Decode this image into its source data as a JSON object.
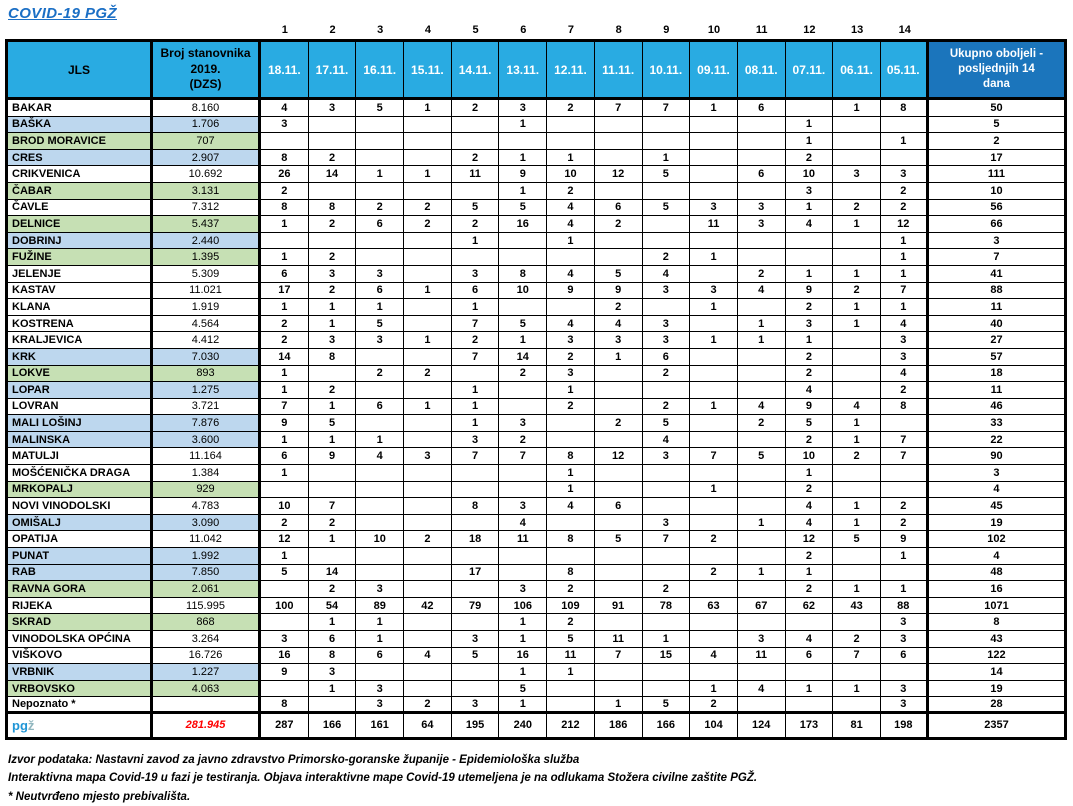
{
  "title": "COVID-19  PGŽ",
  "table": {
    "day_numbers": [
      "1",
      "2",
      "3",
      "4",
      "5",
      "6",
      "7",
      "8",
      "9",
      "10",
      "11",
      "12",
      "13",
      "14"
    ],
    "headers": {
      "jls": "JLS",
      "population": "Broj stanovnika\n2019.\n(DZS)",
      "dates": [
        "18.11.",
        "17.11.",
        "16.11.",
        "15.11.",
        "14.11.",
        "13.11.",
        "12.11.",
        "11.11.",
        "10.11.",
        "09.11.",
        "08.11.",
        "07.11.",
        "06.11.",
        "05.11."
      ],
      "total": "Ukupno oboljeli -\nposljednjih 14\ndana"
    },
    "rows": [
      {
        "name": "BAKAR",
        "population": "8.160",
        "color": "white",
        "values": [
          "4",
          "3",
          "5",
          "1",
          "2",
          "3",
          "2",
          "7",
          "7",
          "1",
          "6",
          "",
          "1",
          "8"
        ],
        "total": "50"
      },
      {
        "name": "BAŠKA",
        "population": "1.706",
        "color": "blue",
        "values": [
          "3",
          "",
          "",
          "",
          "",
          "1",
          "",
          "",
          "",
          "",
          "",
          "1",
          "",
          ""
        ],
        "total": "5"
      },
      {
        "name": "BROD MORAVICE",
        "population": "707",
        "color": "green",
        "values": [
          "",
          "",
          "",
          "",
          "",
          "",
          "",
          "",
          "",
          "",
          "",
          "1",
          "",
          "1"
        ],
        "total": "2"
      },
      {
        "name": "CRES",
        "population": "2.907",
        "color": "blue",
        "values": [
          "8",
          "2",
          "",
          "",
          "2",
          "1",
          "1",
          "",
          "1",
          "",
          "",
          "2",
          "",
          ""
        ],
        "total": "17"
      },
      {
        "name": "CRIKVENICA",
        "population": "10.692",
        "color": "white",
        "values": [
          "26",
          "14",
          "1",
          "1",
          "11",
          "9",
          "10",
          "12",
          "5",
          "",
          "6",
          "10",
          "3",
          "3"
        ],
        "total": "111"
      },
      {
        "name": "ČABAR",
        "population": "3.131",
        "color": "green",
        "values": [
          "2",
          "",
          "",
          "",
          "",
          "1",
          "2",
          "",
          "",
          "",
          "",
          "3",
          "",
          "2"
        ],
        "total": "10"
      },
      {
        "name": "ČAVLE",
        "population": "7.312",
        "color": "white",
        "values": [
          "8",
          "8",
          "2",
          "2",
          "5",
          "5",
          "4",
          "6",
          "5",
          "3",
          "3",
          "1",
          "2",
          "2"
        ],
        "total": "56"
      },
      {
        "name": "DELNICE",
        "population": "5.437",
        "color": "green",
        "values": [
          "1",
          "2",
          "6",
          "2",
          "2",
          "16",
          "4",
          "2",
          "",
          "11",
          "3",
          "4",
          "1",
          "12"
        ],
        "total": "66"
      },
      {
        "name": "DOBRINJ",
        "population": "2.440",
        "color": "blue",
        "values": [
          "",
          "",
          "",
          "",
          "1",
          "",
          "1",
          "",
          "",
          "",
          "",
          "",
          "",
          "1"
        ],
        "total": "3"
      },
      {
        "name": "FUŽINE",
        "population": "1.395",
        "color": "green",
        "values": [
          "1",
          "2",
          "",
          "",
          "",
          "",
          "",
          "",
          "2",
          "1",
          "",
          "",
          "",
          "1"
        ],
        "total": "7"
      },
      {
        "name": "JELENJE",
        "population": "5.309",
        "color": "white",
        "values": [
          "6",
          "3",
          "3",
          "",
          "3",
          "8",
          "4",
          "5",
          "4",
          "",
          "2",
          "1",
          "1",
          "1"
        ],
        "total": "41"
      },
      {
        "name": "KASTAV",
        "population": "11.021",
        "color": "white",
        "values": [
          "17",
          "2",
          "6",
          "1",
          "6",
          "10",
          "9",
          "9",
          "3",
          "3",
          "4",
          "9",
          "2",
          "7"
        ],
        "total": "88"
      },
      {
        "name": "KLANA",
        "population": "1.919",
        "color": "white",
        "values": [
          "1",
          "1",
          "1",
          "",
          "1",
          "",
          "",
          "2",
          "",
          "1",
          "",
          "2",
          "1",
          "1"
        ],
        "total": "11"
      },
      {
        "name": "KOSTRENA",
        "population": "4.564",
        "color": "white",
        "values": [
          "2",
          "1",
          "5",
          "",
          "7",
          "5",
          "4",
          "4",
          "3",
          "",
          "1",
          "3",
          "1",
          "4"
        ],
        "total": "40"
      },
      {
        "name": "KRALJEVICA",
        "population": "4.412",
        "color": "white",
        "values": [
          "2",
          "3",
          "3",
          "1",
          "2",
          "1",
          "3",
          "3",
          "3",
          "1",
          "1",
          "1",
          "",
          "3"
        ],
        "total": "27"
      },
      {
        "name": "KRK",
        "population": "7.030",
        "color": "blue",
        "values": [
          "14",
          "8",
          "",
          "",
          "7",
          "14",
          "2",
          "1",
          "6",
          "",
          "",
          "2",
          "",
          "3"
        ],
        "total": "57"
      },
      {
        "name": "LOKVE",
        "population": "893",
        "color": "green",
        "values": [
          "1",
          "",
          "2",
          "2",
          "",
          "2",
          "3",
          "",
          "2",
          "",
          "",
          "2",
          "",
          "4"
        ],
        "total": "18"
      },
      {
        "name": "LOPAR",
        "population": "1.275",
        "color": "blue",
        "values": [
          "1",
          "2",
          "",
          "",
          "1",
          "",
          "1",
          "",
          "",
          "",
          "",
          "4",
          "",
          "2"
        ],
        "total": "11"
      },
      {
        "name": "LOVRAN",
        "population": "3.721",
        "color": "white",
        "values": [
          "7",
          "1",
          "6",
          "1",
          "1",
          "",
          "2",
          "",
          "2",
          "1",
          "4",
          "9",
          "4",
          "8"
        ],
        "total": "46"
      },
      {
        "name": "MALI LOŠINJ",
        "population": "7.876",
        "color": "blue",
        "values": [
          "9",
          "5",
          "",
          "",
          "1",
          "3",
          "",
          "2",
          "5",
          "",
          "2",
          "5",
          "1",
          ""
        ],
        "total": "33"
      },
      {
        "name": "MALINSKA",
        "population": "3.600",
        "color": "blue",
        "values": [
          "1",
          "1",
          "1",
          "",
          "3",
          "2",
          "",
          "",
          "4",
          "",
          "",
          "2",
          "1",
          "7"
        ],
        "total": "22"
      },
      {
        "name": "MATULJI",
        "population": "11.164",
        "color": "white",
        "values": [
          "6",
          "9",
          "4",
          "3",
          "7",
          "7",
          "8",
          "12",
          "3",
          "7",
          "5",
          "10",
          "2",
          "7"
        ],
        "total": "90"
      },
      {
        "name": "MOŠĆENIČKA DRAGA",
        "population": "1.384",
        "color": "white",
        "values": [
          "1",
          "",
          "",
          "",
          "",
          "",
          "1",
          "",
          "",
          "",
          "",
          "1",
          "",
          ""
        ],
        "total": "3"
      },
      {
        "name": "MRKOPALJ",
        "population": "929",
        "color": "green",
        "values": [
          "",
          "",
          "",
          "",
          "",
          "",
          "1",
          "",
          "",
          "1",
          "",
          "2",
          "",
          ""
        ],
        "total": "4"
      },
      {
        "name": "NOVI VINODOLSKI",
        "population": "4.783",
        "color": "white",
        "values": [
          "10",
          "7",
          "",
          "",
          "8",
          "3",
          "4",
          "6",
          "",
          "",
          "",
          "4",
          "1",
          "2"
        ],
        "total": "45"
      },
      {
        "name": "OMIŠALJ",
        "population": "3.090",
        "color": "blue",
        "values": [
          "2",
          "2",
          "",
          "",
          "",
          "4",
          "",
          "",
          "3",
          "",
          "1",
          "4",
          "1",
          "2"
        ],
        "total": "19"
      },
      {
        "name": "OPATIJA",
        "population": "11.042",
        "color": "white",
        "values": [
          "12",
          "1",
          "10",
          "2",
          "18",
          "11",
          "8",
          "5",
          "7",
          "2",
          "",
          "12",
          "5",
          "9"
        ],
        "total": "102"
      },
      {
        "name": "PUNAT",
        "population": "1.992",
        "color": "blue",
        "values": [
          "1",
          "",
          "",
          "",
          "",
          "",
          "",
          "",
          "",
          "",
          "",
          "2",
          "",
          "1"
        ],
        "total": "4"
      },
      {
        "name": "RAB",
        "population": "7.850",
        "color": "blue",
        "values": [
          "5",
          "14",
          "",
          "",
          "17",
          "",
          "8",
          "",
          "",
          "2",
          "1",
          "1",
          "",
          ""
        ],
        "total": "48"
      },
      {
        "name": "RAVNA GORA",
        "population": "2.061",
        "color": "green",
        "values": [
          "",
          "2",
          "3",
          "",
          "",
          "3",
          "2",
          "",
          "2",
          "",
          "",
          "2",
          "1",
          "1"
        ],
        "total": "16"
      },
      {
        "name": "RIJEKA",
        "population": "115.995",
        "color": "white",
        "values": [
          "100",
          "54",
          "89",
          "42",
          "79",
          "106",
          "109",
          "91",
          "78",
          "63",
          "67",
          "62",
          "43",
          "88"
        ],
        "total": "1071"
      },
      {
        "name": "SKRAD",
        "population": "868",
        "color": "green",
        "values": [
          "",
          "1",
          "1",
          "",
          "",
          "1",
          "2",
          "",
          "",
          "",
          "",
          "",
          "",
          "3"
        ],
        "total": "8"
      },
      {
        "name": "VINODOLSKA OPĆINA",
        "population": "3.264",
        "color": "white",
        "values": [
          "3",
          "6",
          "1",
          "",
          "3",
          "1",
          "5",
          "11",
          "1",
          "",
          "3",
          "4",
          "2",
          "3"
        ],
        "total": "43"
      },
      {
        "name": "VIŠKOVO",
        "population": "16.726",
        "color": "white",
        "values": [
          "16",
          "8",
          "6",
          "4",
          "5",
          "16",
          "11",
          "7",
          "15",
          "4",
          "11",
          "6",
          "7",
          "6"
        ],
        "total": "122"
      },
      {
        "name": "VRBNIK",
        "population": "1.227",
        "color": "blue",
        "values": [
          "9",
          "3",
          "",
          "",
          "",
          "1",
          "1",
          "",
          "",
          "",
          "",
          "",
          "",
          ""
        ],
        "total": "14"
      },
      {
        "name": "VRBOVSKO",
        "population": "4.063",
        "color": "green",
        "values": [
          "",
          "1",
          "3",
          "",
          "",
          "5",
          "",
          "",
          "",
          "1",
          "4",
          "1",
          "1",
          "3"
        ],
        "total": "19"
      },
      {
        "name": "Nepoznato *",
        "population": "",
        "color": "white",
        "values": [
          "8",
          "",
          "3",
          "2",
          "3",
          "1",
          "",
          "1",
          "5",
          "2",
          "",
          "",
          "",
          "3"
        ],
        "total": "28"
      }
    ],
    "total_row": {
      "label_pg": "pg",
      "label_z": "ž",
      "population": "281.945",
      "values": [
        "287",
        "166",
        "161",
        "64",
        "195",
        "240",
        "212",
        "186",
        "166",
        "104",
        "124",
        "173",
        "81",
        "198"
      ],
      "total": "2357"
    }
  },
  "footnotes": [
    "Izvor podataka: Nastavni zavod za javno zdravstvo Primorsko-goranske županije  - Epidemiološka služba",
    "Interaktivna mapa Covid-19 u fazi je testiranja. Objava interaktivne mape Covid-19 utemeljena je na odlukama Stožera civilne zaštite PGŽ.",
    "* Neutvrđeno mjesto prebivališta."
  ],
  "colors": {
    "header_cyan": "#29ABE2",
    "header_dark_blue": "#1B75BC",
    "row_light_blue": "#BDD7EE",
    "row_light_green": "#C6E0B4",
    "title_blue": "#1B6FC5",
    "total_population_red": "#FF0000",
    "logo_pg_blue": "#2196D6",
    "logo_z_gray": "#8FB6BE"
  }
}
